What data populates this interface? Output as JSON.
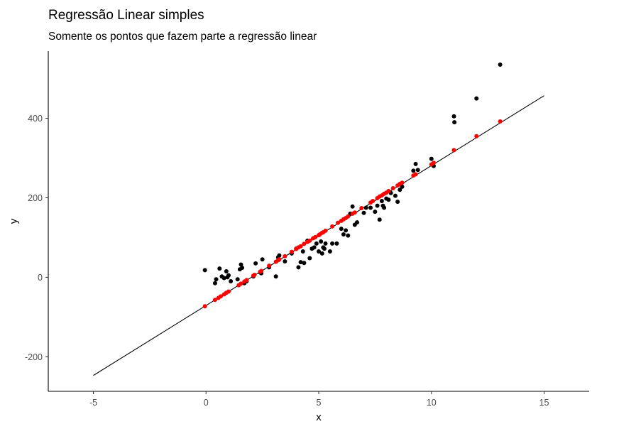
{
  "chart_data": {
    "type": "scatter",
    "title": "Regressão Linear simples",
    "subtitle": "Somente os pontos que fazem parte a regressão linear",
    "xlabel": "x",
    "ylabel": "y",
    "xlim": [
      -7,
      17
    ],
    "ylim": [
      -287,
      569
    ],
    "xticks": [
      -5,
      0,
      5,
      10,
      15
    ],
    "yticks": [
      -200,
      0,
      200,
      400
    ],
    "xtick_labels": [
      "-5",
      "0",
      "5",
      "10",
      "15"
    ],
    "ytick_labels": [
      "-200",
      "0",
      "200",
      "400"
    ],
    "grid": false,
    "regression_line": {
      "x": [
        -5,
        15
      ],
      "y": [
        -247,
        457
      ]
    },
    "series": [
      {
        "color": "#000000",
        "x": [
          -0.05,
          0.4,
          0.45,
          0.6,
          0.7,
          0.8,
          0.9,
          0.95,
          1.0,
          1.1,
          1.4,
          1.5,
          1.55,
          1.6,
          1.7,
          1.8,
          2.1,
          2.2,
          2.4,
          2.45,
          2.5,
          2.8,
          3.1,
          3.2,
          3.25,
          3.5,
          3.8,
          4.0,
          4.1,
          4.2,
          4.3,
          4.35,
          4.5,
          4.6,
          4.7,
          4.8,
          4.9,
          5.0,
          5.1,
          5.15,
          5.2,
          5.25,
          5.3,
          5.5,
          5.6,
          5.8,
          6.0,
          6.1,
          6.2,
          6.3,
          6.4,
          6.5,
          6.6,
          6.7,
          7.0,
          7.1,
          7.3,
          7.5,
          7.6,
          7.7,
          7.8,
          7.85,
          7.9,
          8.0,
          8.1,
          8.2,
          8.4,
          8.5,
          8.6,
          8.7,
          9.2,
          9.3,
          9.4,
          10.0,
          10.1,
          11.0,
          11.02,
          12.0,
          13.05
        ],
        "y": [
          18,
          -15,
          -5,
          22,
          2,
          -2,
          15,
          0,
          5,
          -10,
          -5,
          20,
          32,
          24,
          -15,
          -10,
          2,
          35,
          12,
          10,
          45,
          25,
          2,
          50,
          55,
          40,
          60,
          72,
          25,
          38,
          65,
          36,
          92,
          48,
          72,
          75,
          85,
          65,
          90,
          60,
          75,
          72,
          85,
          65,
          85,
          85,
          122,
          108,
          118,
          105,
          160,
          178,
          132,
          138,
          162,
          175,
          175,
          165,
          180,
          145,
          192,
          180,
          175,
          198,
          195,
          212,
          205,
          190,
          220,
          228,
          268,
          285,
          270,
          298,
          280,
          405,
          390,
          450,
          535
        ]
      },
      {
        "color": "#ff0000",
        "x": [
          -0.05,
          0.4,
          0.55,
          0.65,
          0.8,
          0.9,
          1.0,
          1.45,
          1.55,
          1.7,
          1.8,
          2.1,
          2.15,
          2.4,
          2.45,
          2.8,
          3.1,
          3.2,
          3.25,
          3.5,
          3.8,
          4.0,
          4.1,
          4.2,
          4.35,
          4.5,
          4.6,
          4.75,
          4.85,
          5.0,
          5.05,
          5.15,
          5.2,
          5.3,
          5.6,
          5.85,
          6.0,
          6.1,
          6.2,
          6.3,
          6.5,
          6.6,
          6.9,
          7.3,
          7.4,
          7.6,
          7.7,
          7.8,
          7.9,
          8.0,
          8.1,
          8.3,
          8.5,
          8.6,
          8.7,
          9.2,
          9.3,
          10.0,
          10.1,
          11.0,
          12.0,
          13.05
        ],
        "y": [
          -73,
          -57,
          -52,
          -48,
          -43,
          -39,
          -36,
          -20,
          -16,
          -11,
          -7,
          4,
          6,
          14,
          16,
          29,
          39,
          43,
          45,
          53,
          64,
          71,
          75,
          78,
          84,
          89,
          92,
          98,
          101,
          106,
          108,
          112,
          113,
          117,
          128,
          137,
          142,
          146,
          149,
          153,
          160,
          163,
          174,
          188,
          192,
          199,
          203,
          206,
          210,
          213,
          217,
          224,
          231,
          235,
          238,
          256,
          259,
          284,
          288,
          320,
          355,
          392
        ]
      }
    ]
  }
}
